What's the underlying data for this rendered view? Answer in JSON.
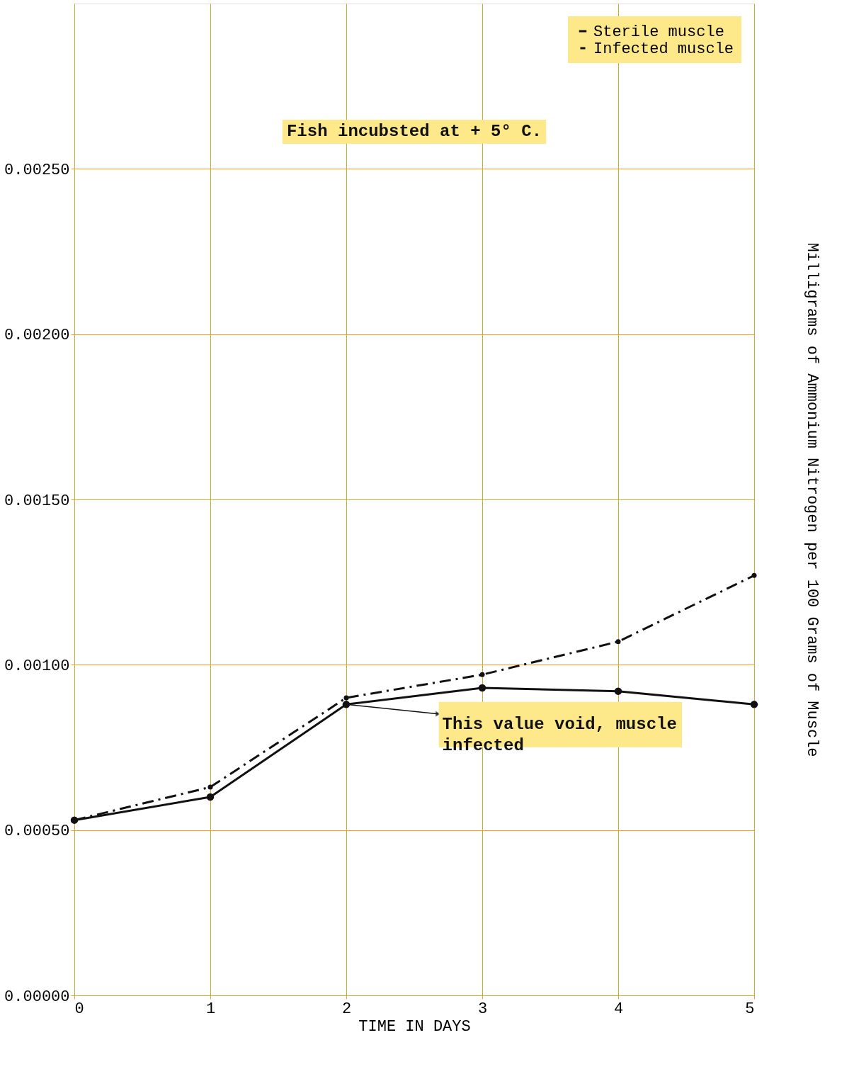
{
  "chart_data": {
    "type": "line",
    "xlabel": "TIME IN DAYS",
    "ylabel": "Milligrams of Ammonium Nitrogen per 100 Grams of Muscle",
    "x": [
      0,
      1,
      2,
      3,
      4,
      5
    ],
    "series": [
      {
        "name": "Sterile muscle",
        "color": "#111111",
        "line_style": "solid",
        "values": [
          0.00053,
          0.0006,
          0.00088,
          0.00093,
          0.00092,
          0.00088
        ]
      },
      {
        "name": "Infected muscle",
        "color": "#111111",
        "line_style": "dashed",
        "values": [
          0.00053,
          0.00063,
          0.0009,
          0.00097,
          0.00107,
          0.00127
        ]
      }
    ],
    "xlim": [
      0,
      5
    ],
    "xticks": [
      0,
      1,
      2,
      3,
      4,
      5
    ],
    "ylim": [
      0,
      0.003
    ],
    "yticks": [
      {
        "value": 0,
        "label": "0.00000"
      },
      {
        "value": 0.0005,
        "label": "0.00050"
      },
      {
        "value": 0.001,
        "label": "0.00100"
      },
      {
        "value": 0.0015,
        "label": "0.00150"
      },
      {
        "value": 0.002,
        "label": "0.00200"
      },
      {
        "value": 0.0025,
        "label": "0.00250"
      }
    ],
    "annotations": [
      "Fish incubsted at + 5° C.",
      {
        "text": "This value void, muscle infected",
        "x": 2,
        "y": 0.00088
      }
    ],
    "grid": true,
    "legend": "top right",
    "marker": "circle"
  }
}
